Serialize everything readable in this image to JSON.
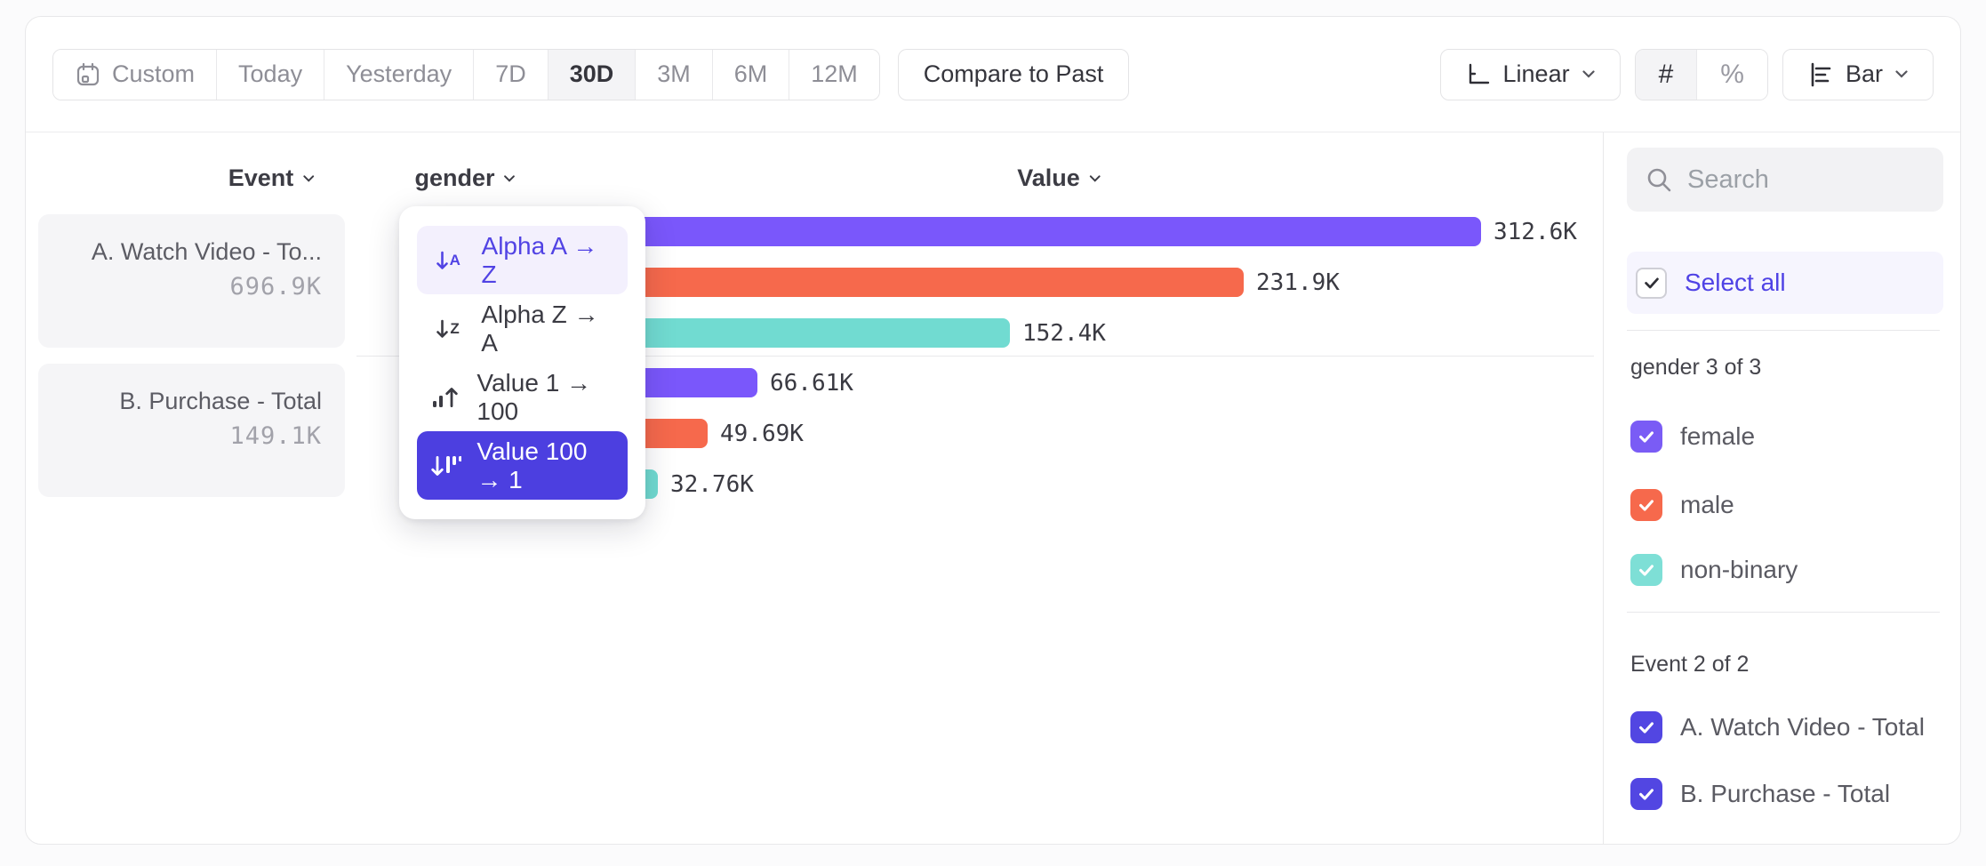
{
  "toolbar": {
    "date_ranges": [
      "Custom",
      "Today",
      "Yesterday",
      "7D",
      "30D",
      "3M",
      "6M",
      "12M"
    ],
    "selected_range": "30D",
    "compare_button": "Compare to Past",
    "scale_selector": "Linear",
    "number_toggle": "#",
    "percent_toggle": "%",
    "chart_type_selector": "Bar"
  },
  "chart_header": {
    "event_col": "Event",
    "breakdown_col": "gender",
    "value_col": "Value"
  },
  "event_cards": [
    {
      "title": "A. Watch Video - To...",
      "value": "696.9K"
    },
    {
      "title": "B. Purchase - Total",
      "value": "149.1K"
    }
  ],
  "sort_menu": {
    "items": [
      {
        "label": "Alpha A → Z",
        "icon": "sort-alpha-ascending-icon",
        "state": "hovered"
      },
      {
        "label": "Alpha Z → A",
        "icon": "sort-alpha-descending-icon",
        "state": "default"
      },
      {
        "label": "Value 1 → 100",
        "icon": "sort-value-ascending-icon",
        "state": "default"
      },
      {
        "label": "Value 100 → 1",
        "icon": "sort-value-descending-icon",
        "state": "selected"
      }
    ]
  },
  "chart_data": {
    "type": "bar",
    "orientation": "horizontal",
    "breakdown": "gender",
    "value_axis_label": "Value",
    "sort": "Value 100 → 1",
    "xlim": [
      0,
      312600
    ],
    "groups": [
      {
        "event": "A. Watch Video - Total",
        "bars": [
          {
            "category": "female",
            "value": 312600,
            "display": "312.6K",
            "color": "#7A57FB"
          },
          {
            "category": "male",
            "value": 231900,
            "display": "231.9K",
            "color": "#F6694C"
          },
          {
            "category": "non-binary",
            "value": 152400,
            "display": "152.4K",
            "color": "#71DBD1"
          }
        ]
      },
      {
        "event": "B. Purchase - Total",
        "bars": [
          {
            "category": "female",
            "value": 66610,
            "display": "66.61K",
            "color": "#7A57FB"
          },
          {
            "category": "male",
            "value": 49690,
            "display": "49.69K",
            "color": "#F6694C"
          },
          {
            "category": "non-binary",
            "value": 32760,
            "display": "32.76K",
            "color": "#71DBD1"
          }
        ]
      }
    ]
  },
  "sidebar": {
    "search_placeholder": "Search",
    "select_all_label": "Select all",
    "sections": [
      {
        "title": "gender 3 of 3",
        "items": [
          {
            "label": "female",
            "checked": true,
            "color": "#7A5CF5"
          },
          {
            "label": "male",
            "checked": true,
            "color": "#F6694C"
          },
          {
            "label": "non-binary",
            "checked": true,
            "color": "#7EDFD6"
          }
        ]
      },
      {
        "title": "Event 2 of 2",
        "items": [
          {
            "label": "A. Watch Video - Total",
            "checked": true,
            "color": "#5246E2"
          },
          {
            "label": "B. Purchase - Total",
            "checked": true,
            "color": "#5246E2"
          }
        ]
      }
    ]
  },
  "colors": {
    "accent_indigo": "#4C40E0",
    "bar_purple": "#7A57FB",
    "bar_orange": "#F6694C",
    "bar_teal": "#71DBD1"
  }
}
